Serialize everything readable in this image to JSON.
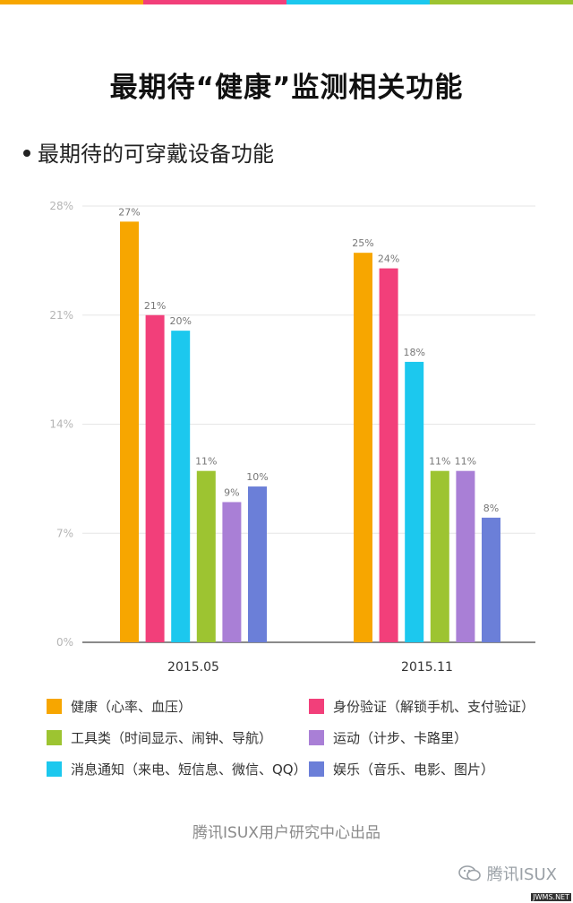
{
  "header": {
    "title": "最期待“健康”监测相关功能",
    "subtitle": "最期待的可穿戴设备功能"
  },
  "colors": {
    "topbar": [
      "#F7A600",
      "#F23F7A",
      "#1CC8EE",
      "#9DC431"
    ]
  },
  "chart_data": {
    "type": "bar",
    "categories": [
      "2015.05",
      "2015.11"
    ],
    "ylim": [
      0,
      28
    ],
    "yticks": [
      "0%",
      "7%",
      "14%",
      "21%",
      "28%"
    ],
    "ytick_values": [
      0,
      7,
      14,
      21,
      28
    ],
    "series": [
      {
        "name": "健康（心率、血压）",
        "color": "#F7A600",
        "values": [
          27,
          25
        ],
        "labels": [
          "27%",
          "25%"
        ]
      },
      {
        "name": "身份验证（解锁手机、支付验证）",
        "color": "#F23F7A",
        "values": [
          21,
          24
        ],
        "labels": [
          "21%",
          "24%"
        ]
      },
      {
        "name": "消息通知（来电、短信息、微信、QQ）",
        "color": "#1CC8EE",
        "values": [
          20,
          18
        ],
        "labels": [
          "20%",
          "18%"
        ]
      },
      {
        "name": "工具类（时间显示、闹钟、导航）",
        "color": "#9DC431",
        "values": [
          11,
          11
        ],
        "labels": [
          "11%",
          "11%"
        ]
      },
      {
        "name": "运动（计步、卡路里）",
        "color": "#A97FD6",
        "values": [
          9,
          11
        ],
        "labels": [
          "9%",
          "11%"
        ]
      },
      {
        "name": "娱乐（音乐、电影、图片）",
        "color": "#6B7FD8",
        "values": [
          10,
          8
        ],
        "labels": [
          "10%",
          "8%"
        ]
      }
    ],
    "grid": true,
    "legend_position": "bottom"
  },
  "legend": [
    {
      "label": "健康（心率、血压）",
      "color": "#F7A600"
    },
    {
      "label": "身份验证（解锁手机、支付验证）",
      "color": "#F23F7A"
    },
    {
      "label": "工具类（时间显示、闹钟、导航）",
      "color": "#9DC431"
    },
    {
      "label": "运动（计步、卡路里）",
      "color": "#A97FD6"
    },
    {
      "label": "消息通知（来电、短信息、微信、QQ）",
      "color": "#1CC8EE"
    },
    {
      "label": "娱乐（音乐、电影、图片）",
      "color": "#6B7FD8"
    }
  ],
  "footer": {
    "credit": "腾讯ISUX用户研究中心出品",
    "watermark": "腾讯ISUX",
    "corner": "JWMS.NET"
  }
}
